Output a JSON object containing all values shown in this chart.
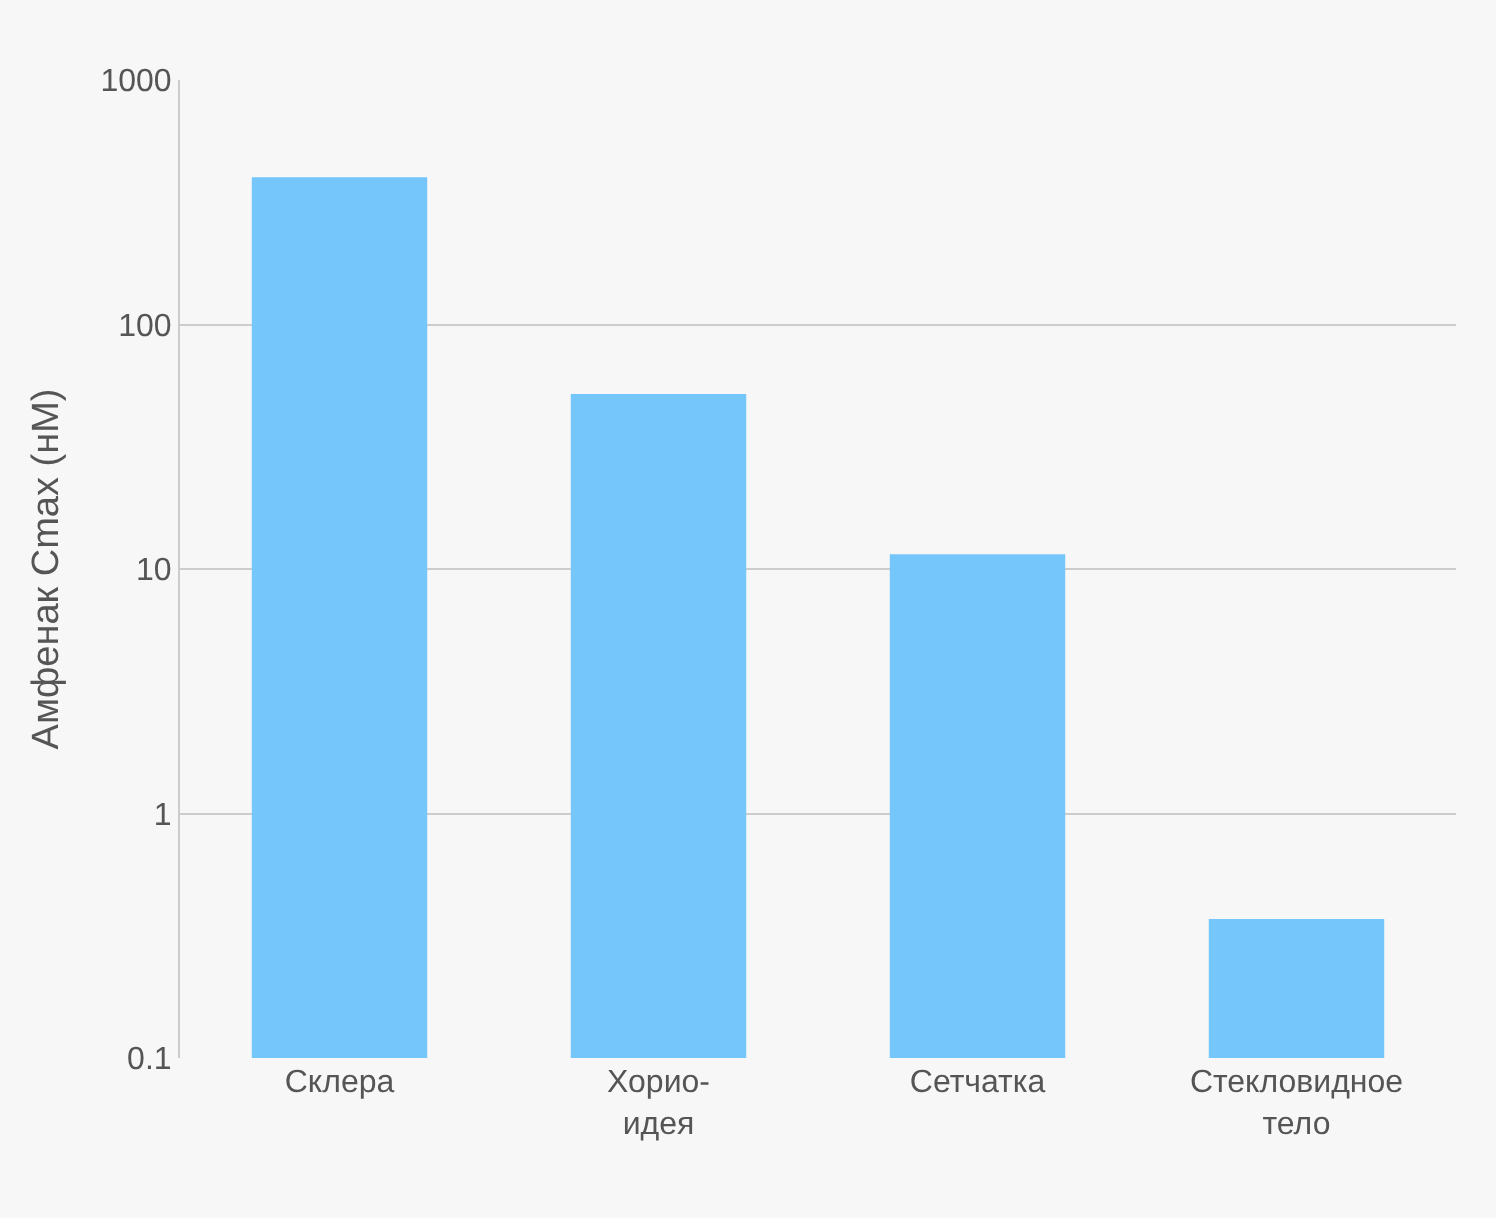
{
  "chart_data": {
    "type": "bar",
    "ylabel": "Амфенак Cmax (нМ)",
    "categories": [
      "Склера",
      "Хорио-\nидея",
      "Сетчатка",
      "Стекловидное\nтело"
    ],
    "values": [
      400,
      52,
      11.5,
      0.37
    ],
    "color": "#74c6fb",
    "log": true,
    "ylim": [
      0.1,
      1000
    ],
    "yticks": [
      0.1,
      1,
      10,
      100,
      1000
    ],
    "grid": "y"
  }
}
